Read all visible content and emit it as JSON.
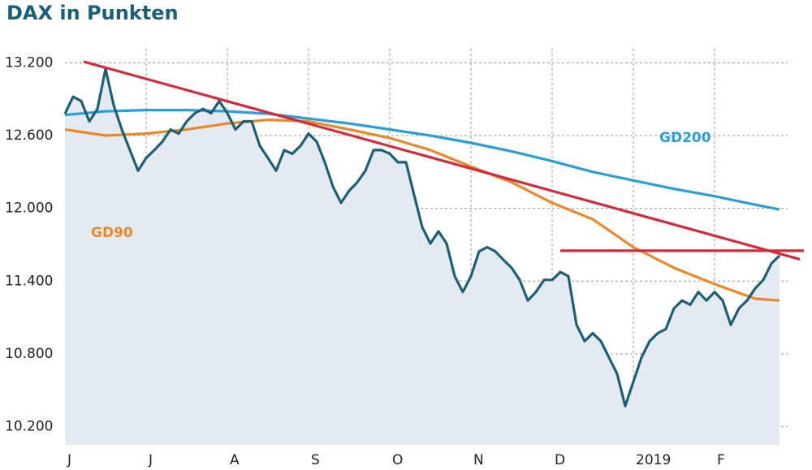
{
  "chart_data": {
    "type": "line",
    "title": "DAX in Punkten",
    "xlim": [
      0,
      9.1
    ],
    "xticks": [
      {
        "value": 0,
        "label": "J"
      },
      {
        "value": 1,
        "label": "J"
      },
      {
        "value": 2,
        "label": "A"
      },
      {
        "value": 3,
        "label": "S"
      },
      {
        "value": 4,
        "label": "O"
      },
      {
        "value": 5,
        "label": "N"
      },
      {
        "value": 6,
        "label": "D"
      },
      {
        "value": 7,
        "label": "2019"
      },
      {
        "value": 8,
        "label": "F"
      }
    ],
    "ylim": [
      10050,
      13450
    ],
    "yticks": [
      {
        "value": 10200,
        "label": "10.200"
      },
      {
        "value": 10800,
        "label": "10.800"
      },
      {
        "value": 11400,
        "label": "11.400"
      },
      {
        "value": 12000,
        "label": "12.000"
      },
      {
        "value": 12600,
        "label": "12.600"
      },
      {
        "value": 13200,
        "label": "13.200"
      }
    ],
    "grid": true,
    "series": [
      {
        "color": "#1e5f74",
        "fill": "#e4eaf2",
        "x": [
          0,
          0.1,
          0.2,
          0.3,
          0.4,
          0.5,
          0.6,
          0.7,
          0.8,
          0.9,
          1,
          1.1,
          1.2,
          1.3,
          1.4,
          1.5,
          1.6,
          1.7,
          1.8,
          1.9,
          2,
          2.1,
          2.2,
          2.3,
          2.4,
          2.5,
          2.6,
          2.7,
          2.8,
          2.9,
          3,
          3.1,
          3.2,
          3.3,
          3.4,
          3.5,
          3.6,
          3.7,
          3.8,
          3.9,
          4,
          4.1,
          4.2,
          4.3,
          4.4,
          4.5,
          4.6,
          4.7,
          4.8,
          4.9,
          5,
          5.1,
          5.2,
          5.3,
          5.4,
          5.5,
          5.6,
          5.7,
          5.8,
          5.9,
          6,
          6.1,
          6.2,
          6.3,
          6.4,
          6.5,
          6.6,
          6.7,
          6.8,
          6.9,
          7,
          7.1,
          7.2,
          7.3,
          7.4,
          7.5,
          7.6,
          7.7,
          7.8,
          7.9,
          8,
          8.1,
          8.2,
          8.3,
          8.4,
          8.5,
          8.6,
          8.7,
          8.8
        ],
        "values": [
          12780,
          12920,
          12885,
          12717,
          12820,
          13150,
          12850,
          12650,
          12480,
          12310,
          12415,
          12480,
          12550,
          12650,
          12616,
          12717,
          12784,
          12820,
          12784,
          12885,
          12784,
          12650,
          12717,
          12717,
          12515,
          12415,
          12310,
          12480,
          12450,
          12515,
          12616,
          12550,
          12380,
          12180,
          12045,
          12145,
          12215,
          12310,
          12480,
          12480,
          12450,
          12380,
          12380,
          12110,
          11845,
          11710,
          11810,
          11710,
          11440,
          11310,
          11440,
          11645,
          11680,
          11645,
          11575,
          11510,
          11410,
          11240,
          11310,
          11410,
          11410,
          11475,
          11440,
          11040,
          10905,
          10970,
          10905,
          10770,
          10635,
          10370,
          10570,
          10770,
          10905,
          10970,
          11005,
          11175,
          11240,
          11205,
          11310,
          11240,
          11310,
          11240,
          11040,
          11175,
          11240,
          11340,
          11410,
          11545,
          11610
        ]
      },
      {
        "name": "GD200",
        "color": "#2a9fd6",
        "x": [
          0,
          0.5,
          1,
          1.5,
          2,
          2.5,
          3,
          3.5,
          4,
          4.5,
          5,
          5.5,
          6,
          6.5,
          7,
          7.5,
          8,
          8.5,
          8.8
        ],
        "values": [
          12770,
          12800,
          12810,
          12810,
          12800,
          12780,
          12740,
          12700,
          12650,
          12600,
          12540,
          12470,
          12390,
          12300,
          12230,
          12160,
          12100,
          12030,
          11990
        ]
      },
      {
        "name": "GD90",
        "color": "#e8892b",
        "x": [
          0,
          0.5,
          1,
          1.5,
          2,
          2.5,
          3,
          3.5,
          4,
          4.5,
          5,
          5.5,
          6,
          6.5,
          7,
          7.5,
          8,
          8.5,
          8.8
        ],
        "values": [
          12650,
          12600,
          12616,
          12650,
          12700,
          12730,
          12717,
          12650,
          12580,
          12480,
          12345,
          12215,
          12045,
          11910,
          11680,
          11510,
          11375,
          11255,
          11240
        ]
      },
      {
        "color": "#d42a3c",
        "x": [
          0.23,
          9.05
        ],
        "values": [
          13210,
          11580
        ]
      },
      {
        "color": "#d42a3c",
        "x": [
          6.1,
          9.1
        ],
        "values": [
          11650,
          11650
        ]
      }
    ]
  }
}
